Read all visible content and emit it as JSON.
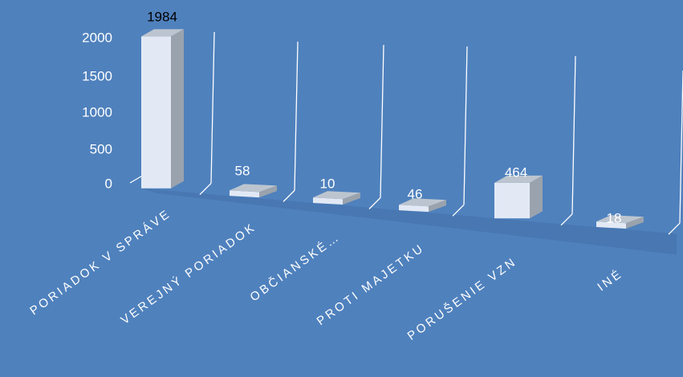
{
  "chart_data": {
    "type": "bar",
    "title": "",
    "xlabel": "",
    "ylabel": "",
    "categories": [
      "PORIADOK V SPRÁVE",
      "VEREJNÝ PORIADOK",
      "OBČIANSKÉ…",
      "PROTI MAJETKU",
      "PORUŠENIE VZN",
      "INÉ"
    ],
    "series": [
      {
        "values": [
          1984,
          58,
          10,
          46,
          464,
          18
        ]
      }
    ],
    "data_labels": [
      "1984",
      "58",
      "10",
      "46",
      "464",
      "18"
    ],
    "y_ticks": [
      "0",
      "500",
      "1000",
      "1500",
      "2000"
    ],
    "ylim": [
      0,
      2000
    ],
    "grid": true,
    "legend": "none",
    "style": "3d-perspective"
  },
  "colors": {
    "background": "#4f81bd",
    "bar_front": "#e2e9f5",
    "bar_side": "#9aa3ad",
    "bar_top": "#bcc5cf",
    "floor_shadow": "#4470aa",
    "gridline": "#ffffff",
    "text": "#ffffff",
    "label_text": "#000000"
  }
}
